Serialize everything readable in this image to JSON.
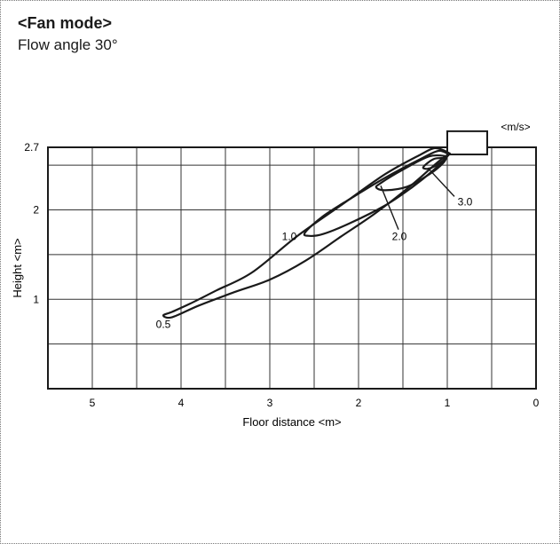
{
  "title": "<Fan mode>",
  "subtitle": "Flow angle 30°",
  "chart_data": {
    "type": "line",
    "xlabel": "Floor distance <m>",
    "ylabel": "Height <m>",
    "unit_label": "<m/s>",
    "x_reversed": true,
    "xlim": [
      0,
      5.5
    ],
    "ylim": [
      0,
      2.7
    ],
    "xticks": [
      5,
      4,
      3,
      2,
      1,
      0
    ],
    "yticks": [
      {
        "value": 2.7,
        "label": "2.7"
      },
      {
        "value": 2,
        "label": "2"
      },
      {
        "value": 1,
        "label": "1"
      }
    ],
    "grid": true,
    "series": [
      {
        "name": "0.5",
        "label_at": [
          4.2,
          0.72
        ],
        "points": [
          [
            0.97,
            2.63
          ],
          [
            1.05,
            2.67
          ],
          [
            1.15,
            2.69
          ],
          [
            1.3,
            2.62
          ],
          [
            1.7,
            2.4
          ],
          [
            2.2,
            2.05
          ],
          [
            2.7,
            1.7
          ],
          [
            3.2,
            1.3
          ],
          [
            3.6,
            1.1
          ],
          [
            3.9,
            0.95
          ],
          [
            4.1,
            0.86
          ],
          [
            4.2,
            0.82
          ],
          [
            4.1,
            0.8
          ],
          [
            3.8,
            0.93
          ],
          [
            3.4,
            1.08
          ],
          [
            3.0,
            1.22
          ],
          [
            2.6,
            1.43
          ],
          [
            2.2,
            1.7
          ],
          [
            1.8,
            1.97
          ],
          [
            1.4,
            2.28
          ],
          [
            1.1,
            2.54
          ],
          [
            0.97,
            2.63
          ]
        ]
      },
      {
        "name": "1.0",
        "label_at": [
          2.78,
          1.7
        ],
        "points": [
          [
            0.98,
            2.62
          ],
          [
            1.1,
            2.66
          ],
          [
            1.3,
            2.57
          ],
          [
            1.7,
            2.36
          ],
          [
            2.1,
            2.12
          ],
          [
            2.4,
            1.93
          ],
          [
            2.6,
            1.75
          ],
          [
            2.57,
            1.71
          ],
          [
            2.4,
            1.73
          ],
          [
            2.1,
            1.85
          ],
          [
            1.7,
            2.05
          ],
          [
            1.4,
            2.25
          ],
          [
            1.15,
            2.45
          ],
          [
            0.98,
            2.62
          ]
        ]
      },
      {
        "name": "2.0",
        "label_at": [
          1.54,
          1.7
        ],
        "points": [
          [
            1.0,
            2.6
          ],
          [
            1.2,
            2.6
          ],
          [
            1.5,
            2.45
          ],
          [
            1.75,
            2.3
          ],
          [
            1.8,
            2.25
          ],
          [
            1.7,
            2.22
          ],
          [
            1.45,
            2.26
          ],
          [
            1.2,
            2.4
          ],
          [
            1.05,
            2.52
          ],
          [
            1.0,
            2.6
          ]
        ]
      },
      {
        "name": "3.0",
        "label_at": [
          0.8,
          2.09
        ],
        "points": [
          [
            1.01,
            2.58
          ],
          [
            1.15,
            2.57
          ],
          [
            1.27,
            2.48
          ],
          [
            1.22,
            2.46
          ],
          [
            1.12,
            2.5
          ],
          [
            1.01,
            2.58
          ]
        ]
      }
    ],
    "outlet": {
      "x_from": 0.55,
      "x_to": 1.0,
      "y_from": 2.62,
      "y_to": 2.88
    }
  }
}
